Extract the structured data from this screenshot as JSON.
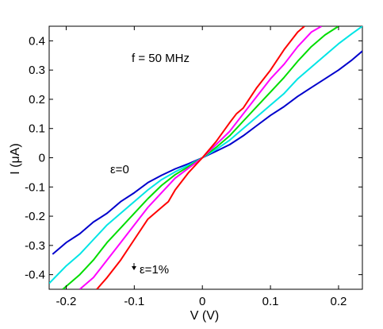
{
  "chart_data": {
    "type": "line",
    "title": "",
    "xlabel": "V (V)",
    "ylabel": "I (μA)",
    "xlim": [
      -0.225,
      0.235
    ],
    "ylim": [
      -0.45,
      0.45
    ],
    "x_ticks": [
      -0.2,
      -0.1,
      0,
      0.1,
      0.2
    ],
    "x_tick_labels": [
      "-0.2",
      "-0.1",
      "0",
      "0.1",
      "0.2"
    ],
    "y_ticks": [
      -0.4,
      -0.3,
      -0.2,
      -0.1,
      0,
      0.1,
      0.2,
      0.3,
      0.4
    ],
    "y_tick_labels": [
      "-0.4",
      "-0.3",
      "-0.2",
      "-0.1",
      "0",
      "0.1",
      "0.2",
      "0.3",
      "0.4"
    ],
    "grid": false,
    "annotations": {
      "frequency": "f = 50 MHz",
      "eps_low": "ε=0",
      "eps_high": "ε=1%"
    },
    "series": [
      {
        "color": "#0000cc",
        "points": [
          [
            -0.22,
            -0.33
          ],
          [
            -0.2,
            -0.29
          ],
          [
            -0.18,
            -0.26
          ],
          [
            -0.16,
            -0.22
          ],
          [
            -0.14,
            -0.19
          ],
          [
            -0.12,
            -0.15
          ],
          [
            -0.1,
            -0.12
          ],
          [
            -0.08,
            -0.085
          ],
          [
            -0.06,
            -0.06
          ],
          [
            -0.04,
            -0.038
          ],
          [
            -0.02,
            -0.02
          ],
          [
            0,
            0
          ],
          [
            0.02,
            0.022
          ],
          [
            0.04,
            0.045
          ],
          [
            0.06,
            0.075
          ],
          [
            0.08,
            0.11
          ],
          [
            0.1,
            0.145
          ],
          [
            0.12,
            0.175
          ],
          [
            0.14,
            0.21
          ],
          [
            0.16,
            0.24
          ],
          [
            0.18,
            0.27
          ],
          [
            0.2,
            0.3
          ],
          [
            0.22,
            0.335
          ],
          [
            0.235,
            0.365
          ]
        ]
      },
      {
        "color": "#00e5e5",
        "points": [
          [
            -0.225,
            -0.43
          ],
          [
            -0.2,
            -0.37
          ],
          [
            -0.18,
            -0.33
          ],
          [
            -0.16,
            -0.28
          ],
          [
            -0.14,
            -0.23
          ],
          [
            -0.12,
            -0.19
          ],
          [
            -0.1,
            -0.15
          ],
          [
            -0.08,
            -0.11
          ],
          [
            -0.06,
            -0.075
          ],
          [
            -0.04,
            -0.048
          ],
          [
            -0.02,
            -0.025
          ],
          [
            0,
            0
          ],
          [
            0.02,
            0.028
          ],
          [
            0.04,
            0.06
          ],
          [
            0.06,
            0.1
          ],
          [
            0.08,
            0.14
          ],
          [
            0.1,
            0.18
          ],
          [
            0.12,
            0.22
          ],
          [
            0.14,
            0.27
          ],
          [
            0.16,
            0.31
          ],
          [
            0.18,
            0.35
          ],
          [
            0.2,
            0.39
          ],
          [
            0.22,
            0.425
          ],
          [
            0.235,
            0.45
          ]
        ]
      },
      {
        "color": "#00dd00",
        "points": [
          [
            -0.205,
            -0.45
          ],
          [
            -0.18,
            -0.4
          ],
          [
            -0.16,
            -0.35
          ],
          [
            -0.14,
            -0.29
          ],
          [
            -0.12,
            -0.24
          ],
          [
            -0.1,
            -0.19
          ],
          [
            -0.08,
            -0.14
          ],
          [
            -0.06,
            -0.095
          ],
          [
            -0.04,
            -0.058
          ],
          [
            -0.02,
            -0.03
          ],
          [
            0,
            0
          ],
          [
            0.02,
            0.035
          ],
          [
            0.04,
            0.075
          ],
          [
            0.06,
            0.125
          ],
          [
            0.08,
            0.175
          ],
          [
            0.1,
            0.225
          ],
          [
            0.12,
            0.275
          ],
          [
            0.14,
            0.33
          ],
          [
            0.16,
            0.38
          ],
          [
            0.18,
            0.42
          ],
          [
            0.2,
            0.45
          ]
        ]
      },
      {
        "color": "#ff00ff",
        "points": [
          [
            -0.18,
            -0.45
          ],
          [
            -0.16,
            -0.41
          ],
          [
            -0.14,
            -0.35
          ],
          [
            -0.12,
            -0.29
          ],
          [
            -0.1,
            -0.23
          ],
          [
            -0.08,
            -0.17
          ],
          [
            -0.06,
            -0.12
          ],
          [
            -0.04,
            -0.07
          ],
          [
            -0.02,
            -0.035
          ],
          [
            0,
            0
          ],
          [
            0.02,
            0.045
          ],
          [
            0.04,
            0.09
          ],
          [
            0.06,
            0.15
          ],
          [
            0.08,
            0.21
          ],
          [
            0.1,
            0.27
          ],
          [
            0.12,
            0.32
          ],
          [
            0.14,
            0.38
          ],
          [
            0.16,
            0.43
          ],
          [
            0.175,
            0.45
          ]
        ]
      },
      {
        "color": "#ff0000",
        "points": [
          [
            -0.155,
            -0.45
          ],
          [
            -0.14,
            -0.41
          ],
          [
            -0.12,
            -0.35
          ],
          [
            -0.1,
            -0.28
          ],
          [
            -0.08,
            -0.21
          ],
          [
            -0.06,
            -0.17
          ],
          [
            -0.05,
            -0.15
          ],
          [
            -0.04,
            -0.11
          ],
          [
            -0.02,
            -0.05
          ],
          [
            0,
            0
          ],
          [
            0.02,
            0.055
          ],
          [
            0.04,
            0.12
          ],
          [
            0.05,
            0.15
          ],
          [
            0.06,
            0.17
          ],
          [
            0.08,
            0.24
          ],
          [
            0.1,
            0.3
          ],
          [
            0.12,
            0.37
          ],
          [
            0.14,
            0.43
          ],
          [
            0.15,
            0.45
          ]
        ]
      }
    ]
  }
}
